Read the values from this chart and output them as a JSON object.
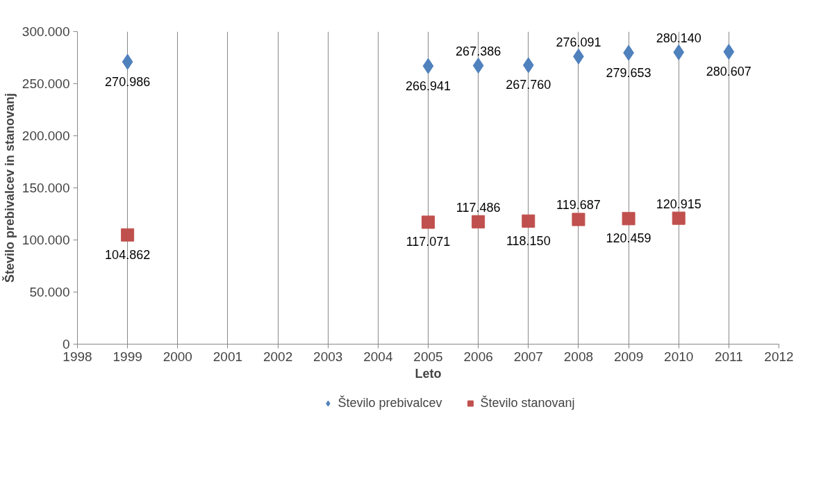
{
  "chart_data": {
    "type": "scatter",
    "xlabel": "Leto",
    "ylabel": "Število prebivalcev in stanovanj",
    "xlim": [
      1998,
      2012
    ],
    "xticks": [
      1998,
      1999,
      2000,
      2001,
      2002,
      2003,
      2004,
      2005,
      2006,
      2007,
      2008,
      2009,
      2010,
      2011,
      2012
    ],
    "ylim": [
      0,
      300000
    ],
    "yticks": [
      0,
      {
        "value": 50000,
        "label": "50.000"
      },
      {
        "value": 100000,
        "label": "100.000"
      },
      {
        "value": 150000,
        "label": "150.000"
      },
      {
        "value": 200000,
        "label": "200.000"
      },
      {
        "value": 250000,
        "label": "250.000"
      },
      {
        "value": 300000,
        "label": "300.000"
      }
    ],
    "grid": "x",
    "legend": "bottom",
    "series": [
      {
        "name": "Število prebivalcev",
        "color": "#4f81bd",
        "marker": "diamond",
        "x": [
          1999,
          2005,
          2006,
          2007,
          2008,
          2009,
          2010,
          2011
        ],
        "values": [
          270986,
          266941,
          267386,
          267760,
          276091,
          279653,
          280140,
          280607
        ],
        "value_labels": [
          "270.986",
          "266.941",
          "267.386",
          "267.760",
          "276.091",
          "279.653",
          "280.140",
          "280.607"
        ]
      },
      {
        "name": "Število stanovanj",
        "color": "#c0504d",
        "marker": "square",
        "x": [
          1999,
          2005,
          2006,
          2007,
          2008,
          2009,
          2010
        ],
        "values": [
          104862,
          117071,
          117486,
          118150,
          119687,
          120459,
          120915
        ],
        "value_labels": [
          "104.862",
          "117.071",
          "117.486",
          "118.150",
          "119.687",
          "120.459",
          "120.915"
        ]
      }
    ]
  }
}
